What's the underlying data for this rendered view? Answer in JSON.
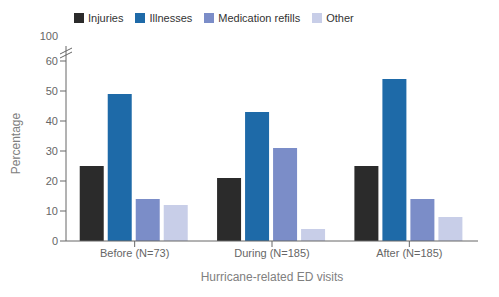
{
  "chart_data": {
    "type": "bar",
    "categories": [
      "Before (N=73)",
      "During (N=185)",
      "After (N=185)"
    ],
    "series": [
      {
        "name": "Injuries",
        "color": "#2b2b2b",
        "values": [
          25,
          21,
          25
        ]
      },
      {
        "name": "Illnesses",
        "color": "#1e6aa8",
        "values": [
          49,
          43,
          54
        ]
      },
      {
        "name": "Medication refills",
        "color": "#7b8dc8",
        "values": [
          14,
          31,
          14
        ]
      },
      {
        "name": "Other",
        "color": "#c8cee8",
        "values": [
          12,
          4,
          8
        ]
      }
    ],
    "xlabel": "Hurricane-related ED visits",
    "ylabel": "Percentage",
    "ylim": [
      0,
      65
    ],
    "yticks": [
      0,
      10,
      20,
      30,
      40,
      50,
      60
    ],
    "annotations": [
      {
        "text": "100"
      }
    ],
    "legend": "upper left",
    "grid": false
  }
}
